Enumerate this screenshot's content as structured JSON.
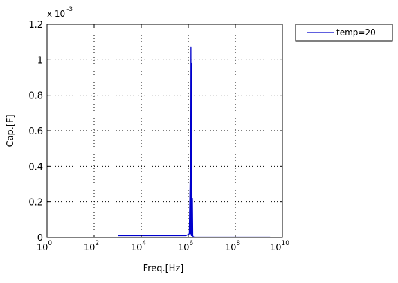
{
  "chart_data": {
    "type": "line",
    "xlabel": "Freq.[Hz]",
    "ylabel": "Cap.[F]",
    "x_scale": "log",
    "xlim": [
      1,
      10000000000
    ],
    "ylim": [
      0,
      0.0012
    ],
    "y_multiplier_label": "x 10",
    "y_multiplier_exponent": "-3",
    "x_ticks": [
      {
        "value": 1,
        "base": "10",
        "exp": "0"
      },
      {
        "value": 100,
        "base": "10",
        "exp": "2"
      },
      {
        "value": 10000,
        "base": "10",
        "exp": "4"
      },
      {
        "value": 1000000,
        "base": "10",
        "exp": "6"
      },
      {
        "value": 100000000,
        "base": "10",
        "exp": "8"
      },
      {
        "value": 10000000000,
        "base": "10",
        "exp": "10"
      }
    ],
    "y_ticks": [
      {
        "value": 0,
        "label": "0"
      },
      {
        "value": 0.0002,
        "label": "0.2"
      },
      {
        "value": 0.0004,
        "label": "0.4"
      },
      {
        "value": 0.0006,
        "label": "0.6"
      },
      {
        "value": 0.0008,
        "label": "0.8"
      },
      {
        "value": 0.001,
        "label": "1"
      },
      {
        "value": 0.0012,
        "label": "1.2"
      }
    ],
    "grid": true,
    "grid_style": "dotted",
    "legend_position": "outside-right-top",
    "series": [
      {
        "name": "temp=20",
        "color": "#0000cc",
        "x": [
          1000,
          10000,
          100000,
          800000,
          1100000,
          1200000,
          1250000,
          1300000,
          1350000,
          1400000,
          1450000,
          1500000,
          1550000,
          1600000,
          1700000,
          2000000,
          10000000,
          100000000,
          1000000000,
          3000000000
        ],
        "y": [
          1e-05,
          1e-05,
          1e-05,
          1e-05,
          2e-05,
          0.00035,
          2e-05,
          0.00107,
          1e-05,
          0.00098,
          1e-05,
          0.00022,
          1e-05,
          5e-06,
          3e-06,
          2e-06,
          2e-06,
          2e-06,
          2e-06,
          2e-06
        ]
      }
    ]
  }
}
